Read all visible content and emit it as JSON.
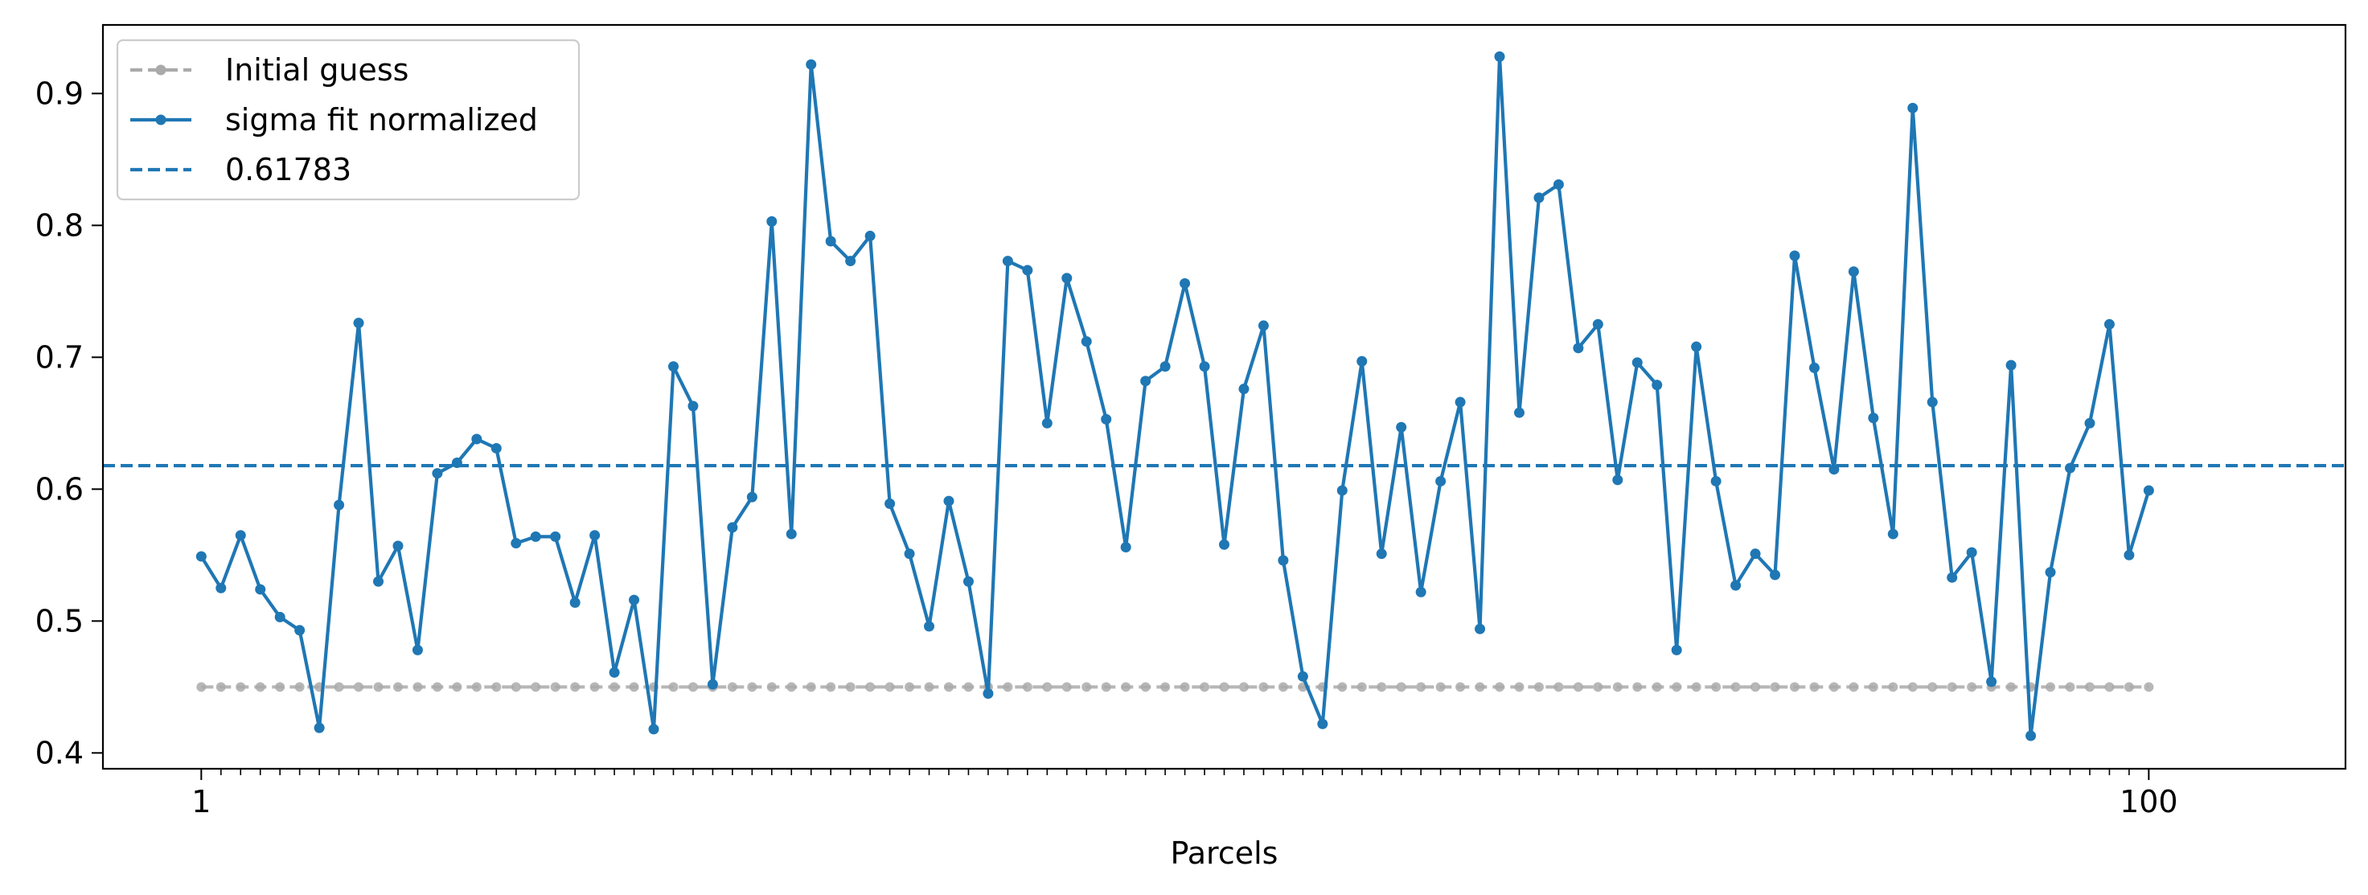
{
  "chart_data": {
    "type": "line",
    "title": "",
    "xlabel": "Parcels",
    "ylabel": "",
    "xlim": [
      -4,
      110
    ],
    "ylim": [
      0.388,
      0.952
    ],
    "x_ticks": [
      1,
      100
    ],
    "x_tick_labels": [
      "1",
      "100"
    ],
    "y_ticks": [
      0.4,
      0.5,
      0.6,
      0.7,
      0.8,
      0.9
    ],
    "y_tick_labels": [
      "0.4",
      "0.5",
      "0.6",
      "0.7",
      "0.8",
      "0.9"
    ],
    "grid": false,
    "legend_position": "top-left",
    "series": [
      {
        "name": "Initial guess",
        "style": "dashed-dots",
        "color": "#aaaaaa",
        "constant": 0.45,
        "n": 100
      },
      {
        "name": "sigma fit normalized",
        "style": "solid-dots",
        "color": "#1f77b4",
        "values": [
          0.549,
          0.525,
          0.565,
          0.524,
          0.503,
          0.493,
          0.419,
          0.588,
          0.726,
          0.53,
          0.557,
          0.478,
          0.612,
          0.62,
          0.638,
          0.631,
          0.559,
          0.564,
          0.564,
          0.514,
          0.565,
          0.461,
          0.516,
          0.418,
          0.693,
          0.663,
          0.452,
          0.571,
          0.594,
          0.803,
          0.566,
          0.922,
          0.788,
          0.773,
          0.792,
          0.589,
          0.551,
          0.496,
          0.591,
          0.53,
          0.445,
          0.773,
          0.766,
          0.65,
          0.76,
          0.712,
          0.653,
          0.556,
          0.682,
          0.693,
          0.756,
          0.693,
          0.558,
          0.676,
          0.724,
          0.546,
          0.458,
          0.422,
          0.599,
          0.697,
          0.551,
          0.647,
          0.522,
          0.606,
          0.666,
          0.494,
          0.928,
          0.658,
          0.821,
          0.831,
          0.707,
          0.725,
          0.607,
          0.696,
          0.679,
          0.478,
          0.708,
          0.606,
          0.527,
          0.551,
          0.535,
          0.777,
          0.692,
          0.615,
          0.765,
          0.654,
          0.566,
          0.889,
          0.666,
          0.533,
          0.552,
          0.454,
          0.694,
          0.413,
          0.537,
          0.616,
          0.65,
          0.725,
          0.55,
          0.599
        ]
      },
      {
        "name": "0.61783",
        "style": "dashed",
        "color": "#1f77b4",
        "constant": 0.61783
      }
    ]
  }
}
